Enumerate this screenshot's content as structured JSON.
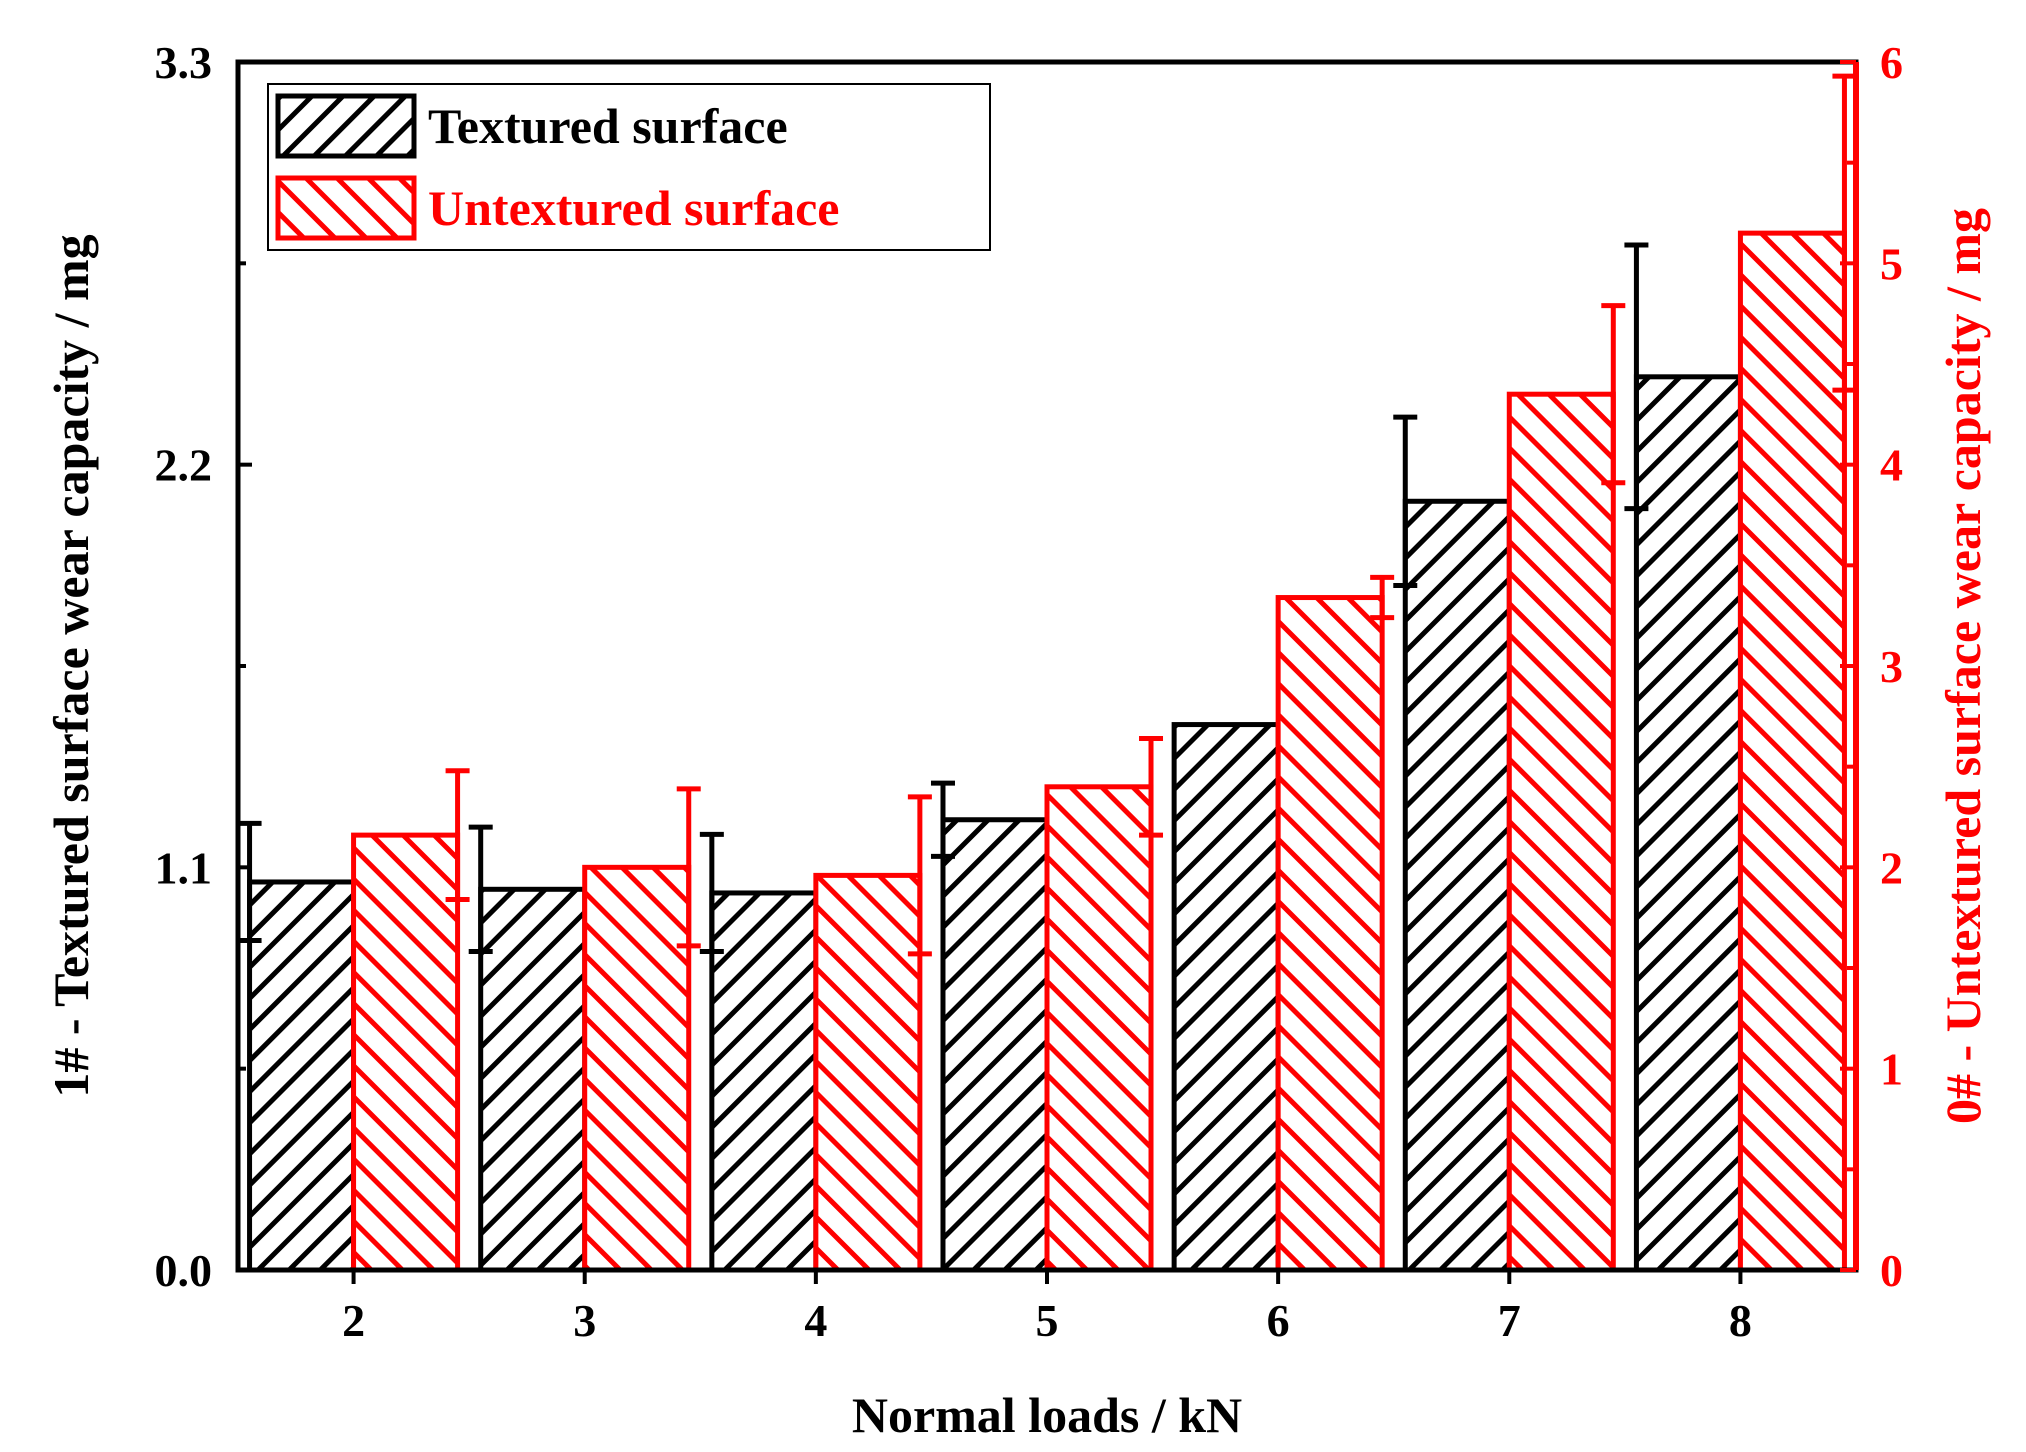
{
  "chart_data": {
    "type": "bar",
    "xlabel": "Normal loads / kN",
    "ylabel_left": "1# - Textured surface wear capacity / mg",
    "ylabel_right": "0# - Untextured surface wear capacity / mg",
    "categories": [
      "2",
      "3",
      "4",
      "5",
      "6",
      "7",
      "8"
    ],
    "left_axis": {
      "range": [
        0,
        3.3
      ],
      "ticks": [
        "0.0",
        "1.1",
        "2.2",
        "3.3"
      ],
      "tick_values": [
        0,
        1.1,
        2.2,
        3.3
      ]
    },
    "right_axis": {
      "range": [
        0,
        6
      ],
      "ticks": [
        "0",
        "1",
        "2",
        "3",
        "4",
        "5",
        "6"
      ],
      "tick_values": [
        0,
        1,
        2,
        3,
        4,
        5,
        6
      ]
    },
    "legend_position": "top-left",
    "series": [
      {
        "name": "Textured surface",
        "axis": "left",
        "color": "#000000",
        "hatch": "forward",
        "values": [
          1.06,
          1.04,
          1.03,
          1.23,
          1.49,
          2.1,
          2.44
        ],
        "errors": [
          0.16,
          0.17,
          0.16,
          0.1,
          0.0,
          0.23,
          0.36
        ]
      },
      {
        "name": "Untextured surface",
        "axis": "right",
        "color": "#ff0000",
        "hatch": "backward",
        "values": [
          2.16,
          2.0,
          1.96,
          2.4,
          3.34,
          4.35,
          5.15
        ],
        "errors": [
          0.32,
          0.39,
          0.39,
          0.24,
          0.1,
          0.44,
          0.78
        ]
      }
    ]
  }
}
